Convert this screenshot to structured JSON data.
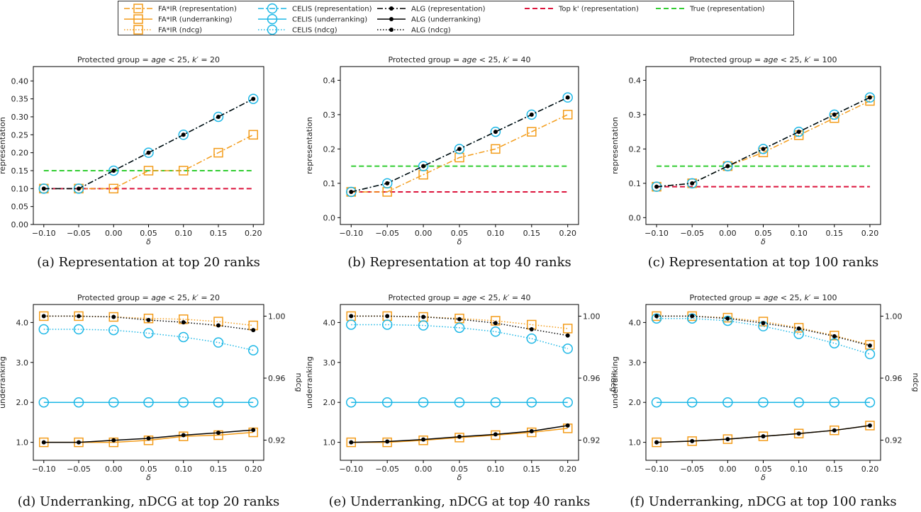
{
  "legend": {
    "entries": [
      {
        "key": "fair_rep",
        "label": "FA*IR (representation)",
        "color": "#f39c1a",
        "dash": "8,3,2,3",
        "marker": "square"
      },
      {
        "key": "fair_under",
        "label": "FA*IR (underranking)",
        "color": "#f39c1a",
        "dash": "",
        "marker": "square"
      },
      {
        "key": "fair_ndcg",
        "label": "FA*IR (ndcg)",
        "color": "#f39c1a",
        "dash": "1.5,2.5",
        "marker": "square"
      },
      {
        "key": "celis_rep",
        "label": "CELIS (representation)",
        "color": "#1cb7e6",
        "dash": "8,3,2,3",
        "marker": "circle"
      },
      {
        "key": "celis_under",
        "label": "CELIS (underranking)",
        "color": "#1cb7e6",
        "dash": "",
        "marker": "circle"
      },
      {
        "key": "celis_ndcg",
        "label": "CELIS (ndcg)",
        "color": "#1cb7e6",
        "dash": "1.5,2.5",
        "marker": "circle"
      },
      {
        "key": "alg_rep",
        "label": "ALG (representation)",
        "color": "#000000",
        "dash": "8,3,2,3",
        "marker": "dot"
      },
      {
        "key": "alg_under",
        "label": "ALG (underranking)",
        "color": "#000000",
        "dash": "",
        "marker": "dot"
      },
      {
        "key": "alg_ndcg",
        "label": "ALG (ndcg)",
        "color": "#000000",
        "dash": "1.5,2.5",
        "marker": "dot"
      },
      {
        "key": "topk_rep",
        "label": "Top k' (representation)",
        "color": "#dc143c",
        "dash": "7,4",
        "marker": "none"
      },
      {
        "key": "true_rep",
        "label": "True (representation)",
        "color": "#32cd32",
        "dash": "7,4",
        "marker": "none"
      }
    ]
  },
  "chart_data": [
    {
      "type": "line",
      "caption": "(a) Representation at top 20 ranks",
      "title": "Protected group = age < 25, k′ = 20",
      "xlabel": "δ",
      "ylabel": "representation",
      "x": [
        -0.1,
        -0.05,
        0.0,
        0.05,
        0.1,
        0.15,
        0.2
      ],
      "xlim": [
        -0.115,
        0.215
      ],
      "ylim": [
        0.0,
        0.44
      ],
      "yticks": [
        0.0,
        0.05,
        0.1,
        0.15,
        0.2,
        0.25,
        0.3,
        0.35,
        0.4
      ],
      "ytick_labels": [
        "0.00",
        "0.05",
        "0.10",
        "0.15",
        "0.20",
        "0.25",
        "0.30",
        "0.35",
        "0.40"
      ],
      "series": [
        {
          "name": "Top k' (representation)",
          "style": "topk_rep",
          "values": [
            0.1,
            0.1,
            0.1,
            0.1,
            0.1,
            0.1,
            0.1
          ]
        },
        {
          "name": "True (representation)",
          "style": "true_rep",
          "values": [
            0.15,
            0.15,
            0.15,
            0.15,
            0.15,
            0.15,
            0.15
          ]
        },
        {
          "name": "FA*IR (representation)",
          "style": "fair_rep",
          "values": [
            0.1,
            0.1,
            0.1,
            0.15,
            0.15,
            0.2,
            0.25
          ]
        },
        {
          "name": "CELIS (representation)",
          "style": "celis_rep",
          "values": [
            0.1,
            0.1,
            0.15,
            0.2,
            0.25,
            0.3,
            0.35
          ]
        },
        {
          "name": "ALG (representation)",
          "style": "alg_rep",
          "values": [
            0.1,
            0.1,
            0.15,
            0.2,
            0.25,
            0.3,
            0.35
          ]
        }
      ]
    },
    {
      "type": "line",
      "caption": "(b) Representation at top 40 ranks",
      "title": "Protected group = age < 25, k′ = 40",
      "xlabel": "δ",
      "ylabel": "representation",
      "x": [
        -0.1,
        -0.05,
        0.0,
        0.05,
        0.1,
        0.15,
        0.2
      ],
      "xlim": [
        -0.115,
        0.215
      ],
      "ylim": [
        -0.02,
        0.44
      ],
      "yticks": [
        0.0,
        0.1,
        0.2,
        0.3,
        0.4
      ],
      "ytick_labels": [
        "0.0",
        "0.1",
        "0.2",
        "0.3",
        "0.4"
      ],
      "series": [
        {
          "name": "Top k' (representation)",
          "style": "topk_rep",
          "values": [
            0.075,
            0.075,
            0.075,
            0.075,
            0.075,
            0.075,
            0.075
          ]
        },
        {
          "name": "True (representation)",
          "style": "true_rep",
          "values": [
            0.15,
            0.15,
            0.15,
            0.15,
            0.15,
            0.15,
            0.15
          ]
        },
        {
          "name": "FA*IR (representation)",
          "style": "fair_rep",
          "values": [
            0.075,
            0.075,
            0.125,
            0.175,
            0.2,
            0.25,
            0.3
          ]
        },
        {
          "name": "CELIS (representation)",
          "style": "celis_rep",
          "values": [
            0.075,
            0.1,
            0.15,
            0.2,
            0.25,
            0.3,
            0.35
          ]
        },
        {
          "name": "ALG (representation)",
          "style": "alg_rep",
          "values": [
            0.075,
            0.1,
            0.15,
            0.2,
            0.25,
            0.3,
            0.35
          ]
        }
      ]
    },
    {
      "type": "line",
      "caption": "(c) Representation at top 100 ranks",
      "title": "Protected group = age < 25, k′ = 100",
      "xlabel": "δ",
      "ylabel": "representation",
      "x": [
        -0.1,
        -0.05,
        0.0,
        0.05,
        0.1,
        0.15,
        0.2
      ],
      "xlim": [
        -0.115,
        0.215
      ],
      "ylim": [
        -0.02,
        0.44
      ],
      "yticks": [
        0.0,
        0.1,
        0.2,
        0.3,
        0.4
      ],
      "ytick_labels": [
        "0.0",
        "0.1",
        "0.2",
        "0.3",
        "0.4"
      ],
      "series": [
        {
          "name": "Top k' (representation)",
          "style": "topk_rep",
          "values": [
            0.09,
            0.09,
            0.09,
            0.09,
            0.09,
            0.09,
            0.09
          ]
        },
        {
          "name": "True (representation)",
          "style": "true_rep",
          "values": [
            0.15,
            0.15,
            0.15,
            0.15,
            0.15,
            0.15,
            0.15
          ]
        },
        {
          "name": "FA*IR (representation)",
          "style": "fair_rep",
          "values": [
            0.09,
            0.1,
            0.15,
            0.19,
            0.24,
            0.29,
            0.34
          ]
        },
        {
          "name": "CELIS (representation)",
          "style": "celis_rep",
          "values": [
            0.09,
            0.1,
            0.15,
            0.2,
            0.25,
            0.3,
            0.35
          ]
        },
        {
          "name": "ALG (representation)",
          "style": "alg_rep",
          "values": [
            0.09,
            0.1,
            0.15,
            0.2,
            0.25,
            0.3,
            0.35
          ]
        }
      ]
    },
    {
      "type": "line",
      "caption": "(d) Underranking, nDCG at top 20 ranks",
      "title": "Protected group = age < 25, k′ = 20",
      "xlabel": "δ",
      "ylabel": "underranking",
      "y2label": "ndcg",
      "x": [
        -0.1,
        -0.05,
        0.0,
        0.05,
        0.1,
        0.15,
        0.2
      ],
      "xlim": [
        -0.115,
        0.215
      ],
      "ylim": [
        0.55,
        4.45
      ],
      "y2lim": [
        0.907,
        1.0075
      ],
      "yticks": [
        1.0,
        2.0,
        3.0,
        4.0
      ],
      "ytick_labels": [
        "1.0",
        "2.0",
        "3.0",
        "4.0"
      ],
      "y2ticks": [
        0.92,
        0.96,
        1.0
      ],
      "y2tick_labels": [
        "0.92",
        "0.96",
        "1.00"
      ],
      "series": [
        {
          "name": "FA*IR (underranking)",
          "style": "fair_under",
          "axis": "left",
          "values": [
            1.0,
            1.0,
            1.0,
            1.05,
            1.15,
            1.18,
            1.25
          ]
        },
        {
          "name": "CELIS (underranking)",
          "style": "celis_under",
          "axis": "left",
          "values": [
            2.0,
            2.0,
            2.0,
            2.0,
            2.0,
            2.0,
            2.0
          ]
        },
        {
          "name": "ALG (underranking)",
          "style": "alg_under",
          "axis": "left",
          "values": [
            1.0,
            1.0,
            1.05,
            1.1,
            1.18,
            1.24,
            1.31
          ]
        },
        {
          "name": "FA*IR (ndcg)",
          "style": "fair_ndcg",
          "axis": "right",
          "values": [
            1.0,
            1.0,
            0.9995,
            0.9985,
            0.998,
            0.9965,
            0.994
          ]
        },
        {
          "name": "CELIS (ndcg)",
          "style": "celis_ndcg",
          "axis": "right",
          "values": [
            0.9915,
            0.9915,
            0.991,
            0.989,
            0.9865,
            0.983,
            0.978
          ]
        },
        {
          "name": "ALG (ndcg)",
          "style": "alg_ndcg",
          "axis": "right",
          "values": [
            1.0,
            1.0,
            0.9995,
            0.9975,
            0.996,
            0.994,
            0.991
          ]
        }
      ]
    },
    {
      "type": "line",
      "caption": "(e) Underranking, nDCG at top 40 ranks",
      "title": "Protected group = age < 25, k′ = 40",
      "xlabel": "δ",
      "ylabel": "underranking",
      "y2label": "ndcg",
      "x": [
        -0.1,
        -0.05,
        0.0,
        0.05,
        0.1,
        0.15,
        0.2
      ],
      "xlim": [
        -0.115,
        0.215
      ],
      "ylim": [
        0.55,
        4.45
      ],
      "y2lim": [
        0.907,
        1.0075
      ],
      "yticks": [
        1.0,
        2.0,
        3.0,
        4.0
      ],
      "ytick_labels": [
        "1.0",
        "2.0",
        "3.0",
        "4.0"
      ],
      "y2ticks": [
        0.92,
        0.96,
        1.0
      ],
      "y2tick_labels": [
        "0.92",
        "0.96",
        "1.00"
      ],
      "series": [
        {
          "name": "FA*IR (underranking)",
          "style": "fair_under",
          "axis": "left",
          "values": [
            1.0,
            1.0,
            1.05,
            1.12,
            1.18,
            1.25,
            1.35
          ]
        },
        {
          "name": "CELIS (underranking)",
          "style": "celis_under",
          "axis": "left",
          "values": [
            2.0,
            2.0,
            2.0,
            2.0,
            2.0,
            2.0,
            2.0
          ]
        },
        {
          "name": "ALG (underranking)",
          "style": "alg_under",
          "axis": "left",
          "values": [
            1.0,
            1.02,
            1.07,
            1.14,
            1.2,
            1.28,
            1.42
          ]
        },
        {
          "name": "FA*IR (ndcg)",
          "style": "fair_ndcg",
          "axis": "right",
          "values": [
            1.0,
            1.0,
            0.9995,
            0.9985,
            0.997,
            0.9945,
            0.992
          ]
        },
        {
          "name": "CELIS (ndcg)",
          "style": "celis_ndcg",
          "axis": "right",
          "values": [
            0.9945,
            0.9945,
            0.994,
            0.9925,
            0.99,
            0.9855,
            0.979
          ]
        },
        {
          "name": "ALG (ndcg)",
          "style": "alg_ndcg",
          "axis": "right",
          "values": [
            1.0,
            1.0,
            0.9995,
            0.998,
            0.9955,
            0.9915,
            0.9875
          ]
        }
      ]
    },
    {
      "type": "line",
      "caption": "(f) Underranking, nDCG at top 100 ranks",
      "title": "Protected group = age < 25, k′ = 100",
      "xlabel": "δ",
      "ylabel": "underranking",
      "y2label": "ndcg",
      "x": [
        -0.1,
        -0.05,
        0.0,
        0.05,
        0.1,
        0.15,
        0.2
      ],
      "xlim": [
        -0.115,
        0.215
      ],
      "ylim": [
        0.55,
        4.45
      ],
      "y2lim": [
        0.907,
        1.0075
      ],
      "yticks": [
        1.0,
        2.0,
        3.0,
        4.0
      ],
      "ytick_labels": [
        "1.0",
        "2.0",
        "3.0",
        "4.0"
      ],
      "y2ticks": [
        0.92,
        0.96,
        1.0
      ],
      "y2tick_labels": [
        "0.92",
        "0.96",
        "1.00"
      ],
      "series": [
        {
          "name": "FA*IR (underranking)",
          "style": "fair_under",
          "axis": "left",
          "values": [
            1.0,
            1.03,
            1.08,
            1.15,
            1.22,
            1.3,
            1.42
          ]
        },
        {
          "name": "CELIS (underranking)",
          "style": "celis_under",
          "axis": "left",
          "values": [
            2.0,
            2.0,
            2.0,
            2.0,
            2.0,
            2.0,
            2.0
          ]
        },
        {
          "name": "ALG (underranking)",
          "style": "alg_under",
          "axis": "left",
          "values": [
            1.0,
            1.03,
            1.08,
            1.15,
            1.22,
            1.3,
            1.42
          ]
        },
        {
          "name": "FA*IR (ndcg)",
          "style": "fair_ndcg",
          "axis": "right",
          "values": [
            1.0,
            1.0,
            0.999,
            0.9965,
            0.9925,
            0.9875,
            0.9815
          ]
        },
        {
          "name": "CELIS (ndcg)",
          "style": "celis_ndcg",
          "axis": "right",
          "values": [
            0.9985,
            0.9985,
            0.997,
            0.9935,
            0.9885,
            0.9825,
            0.9755
          ]
        },
        {
          "name": "ALG (ndcg)",
          "style": "alg_ndcg",
          "axis": "right",
          "values": [
            1.0,
            1.0,
            0.9985,
            0.9955,
            0.992,
            0.987,
            0.981
          ]
        }
      ]
    }
  ]
}
